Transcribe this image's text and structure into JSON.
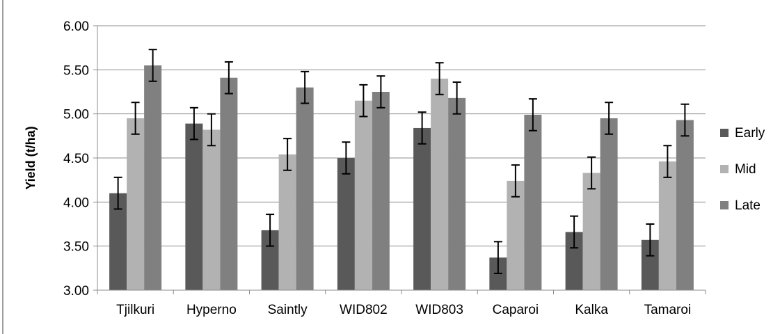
{
  "chart_data": {
    "type": "bar",
    "ylabel": "Yield (t/ha)",
    "ylim": [
      3.0,
      6.0
    ],
    "yticks": [
      "3.00",
      "3.50",
      "4.00",
      "4.50",
      "5.00",
      "5.50",
      "6.00"
    ],
    "grid": true,
    "legend_position": "right",
    "categories": [
      "Tjilkuri",
      "Hyperno",
      "Saintly",
      "WID802",
      "WID803",
      "Caparoi",
      "Kalka",
      "Tamaroi"
    ],
    "series": [
      {
        "name": "Early",
        "color": "#595959",
        "values": [
          4.1,
          4.89,
          3.68,
          4.5,
          4.84,
          3.37,
          3.66,
          3.57
        ],
        "error": [
          0.18,
          0.18,
          0.18,
          0.18,
          0.18,
          0.18,
          0.18,
          0.18
        ]
      },
      {
        "name": "Mid",
        "color": "#b2b2b2",
        "values": [
          4.95,
          4.82,
          4.54,
          5.15,
          5.4,
          4.24,
          4.33,
          4.46
        ],
        "error": [
          0.18,
          0.18,
          0.18,
          0.18,
          0.18,
          0.18,
          0.18,
          0.18
        ]
      },
      {
        "name": "Late",
        "color": "#808080",
        "values": [
          5.55,
          5.41,
          5.3,
          5.25,
          5.18,
          4.99,
          4.95,
          4.93
        ],
        "error": [
          0.18,
          0.18,
          0.18,
          0.18,
          0.18,
          0.18,
          0.18,
          0.18
        ]
      }
    ]
  }
}
